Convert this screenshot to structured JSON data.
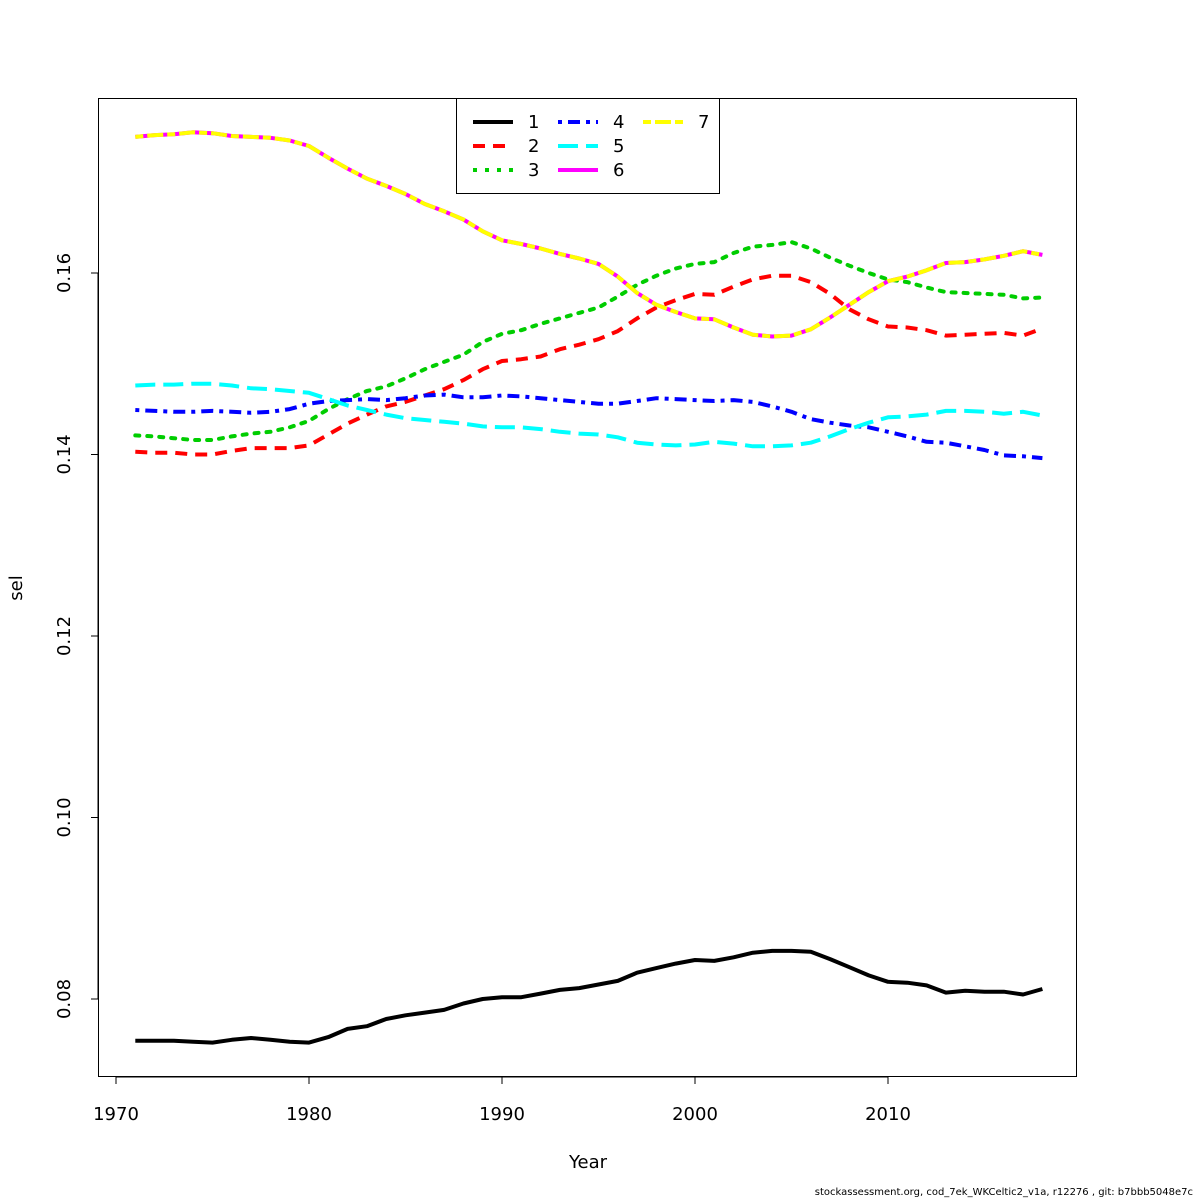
{
  "chart_data": {
    "type": "line",
    "xlabel": "Year",
    "ylabel": "sel",
    "xlim": [
      1970,
      2018
    ],
    "ylim": [
      0.072,
      0.179
    ],
    "x_ticks": [
      "1970",
      "1980",
      "1990",
      "2000",
      "2010"
    ],
    "y_ticks": [
      "0.08",
      "0.10",
      "0.12",
      "0.14",
      "0.16"
    ],
    "legend_position": "top-center",
    "x": [
      1971,
      1972,
      1973,
      1974,
      1975,
      1976,
      1977,
      1978,
      1979,
      1980,
      1981,
      1982,
      1983,
      1984,
      1985,
      1986,
      1987,
      1988,
      1989,
      1990,
      1991,
      1992,
      1993,
      1994,
      1995,
      1996,
      1997,
      1998,
      1999,
      2000,
      2001,
      2002,
      2003,
      2004,
      2005,
      2006,
      2007,
      2008,
      2009,
      2010,
      2011,
      2012,
      2013,
      2014,
      2015,
      2016,
      2017,
      2018
    ],
    "series": [
      {
        "name": "1",
        "color": "#000000",
        "dash": "solid",
        "values": [
          0.0754,
          0.0754,
          0.0754,
          0.0753,
          0.0752,
          0.0755,
          0.0757,
          0.0755,
          0.0753,
          0.0752,
          0.0758,
          0.0767,
          0.077,
          0.0778,
          0.0782,
          0.0785,
          0.0788,
          0.0795,
          0.08,
          0.0802,
          0.0802,
          0.0806,
          0.081,
          0.0812,
          0.0816,
          0.082,
          0.0829,
          0.0834,
          0.0839,
          0.0843,
          0.0842,
          0.0846,
          0.0851,
          0.0853,
          0.0853,
          0.0852,
          0.0844,
          0.0835,
          0.0826,
          0.0819,
          0.0818,
          0.0815,
          0.0807,
          0.0809,
          0.0808,
          0.0808,
          0.0805,
          0.0811
        ]
      },
      {
        "name": "2",
        "color": "#ff0000",
        "dash": "dashed",
        "values": [
          0.1403,
          0.1402,
          0.1402,
          0.14,
          0.14,
          0.1404,
          0.1407,
          0.1407,
          0.1407,
          0.141,
          0.1422,
          0.1434,
          0.1444,
          0.1453,
          0.1458,
          0.1465,
          0.1472,
          0.1482,
          0.1494,
          0.1503,
          0.1505,
          0.1508,
          0.1516,
          0.1521,
          0.1527,
          0.1536,
          0.155,
          0.1562,
          0.157,
          0.1577,
          0.1576,
          0.1585,
          0.1593,
          0.1597,
          0.1597,
          0.159,
          0.1577,
          0.156,
          0.1549,
          0.1541,
          0.154,
          0.1537,
          0.1531,
          0.1532,
          0.1533,
          0.1534,
          0.1531,
          0.1539
        ]
      },
      {
        "name": "3",
        "color": "#00cd00",
        "dash": "dotted",
        "values": [
          0.1421,
          0.142,
          0.1418,
          0.1416,
          0.1416,
          0.142,
          0.1423,
          0.1425,
          0.143,
          0.1437,
          0.145,
          0.1461,
          0.147,
          0.1475,
          0.1484,
          0.1494,
          0.1502,
          0.151,
          0.1524,
          0.1533,
          0.1537,
          0.1544,
          0.155,
          0.1556,
          0.1562,
          0.1574,
          0.1587,
          0.1597,
          0.1605,
          0.161,
          0.1612,
          0.1622,
          0.1629,
          0.1631,
          0.1634,
          0.1627,
          0.1617,
          0.1608,
          0.16,
          0.1593,
          0.159,
          0.1584,
          0.1579,
          0.1578,
          0.1577,
          0.1576,
          0.1572,
          0.1573
        ]
      },
      {
        "name": "4",
        "color": "#0000ff",
        "dash": "dashdot",
        "values": [
          0.1449,
          0.1448,
          0.1447,
          0.1447,
          0.1448,
          0.1447,
          0.1446,
          0.1447,
          0.145,
          0.1456,
          0.1459,
          0.146,
          0.1461,
          0.146,
          0.1462,
          0.1465,
          0.1466,
          0.1463,
          0.1463,
          0.1465,
          0.1464,
          0.1462,
          0.146,
          0.1458,
          0.1456,
          0.1456,
          0.1459,
          0.1462,
          0.1461,
          0.146,
          0.1459,
          0.146,
          0.1458,
          0.1453,
          0.1447,
          0.1439,
          0.1435,
          0.1432,
          0.143,
          0.1425,
          0.142,
          0.1414,
          0.1413,
          0.1409,
          0.1405,
          0.1399,
          0.1398,
          0.1396
        ]
      },
      {
        "name": "5",
        "color": "#00ffff",
        "dash": "longdash",
        "values": [
          0.1476,
          0.1477,
          0.1477,
          0.1478,
          0.1478,
          0.1476,
          0.1473,
          0.1472,
          0.147,
          0.1468,
          0.1461,
          0.1454,
          0.1449,
          0.1444,
          0.144,
          0.1438,
          0.1436,
          0.1434,
          0.1431,
          0.143,
          0.143,
          0.1428,
          0.1425,
          0.1423,
          0.1422,
          0.1419,
          0.1413,
          0.1411,
          0.141,
          0.1411,
          0.1414,
          0.1412,
          0.1409,
          0.1409,
          0.141,
          0.1413,
          0.142,
          0.1428,
          0.1435,
          0.1441,
          0.1442,
          0.1444,
          0.1448,
          0.1448,
          0.1447,
          0.1445,
          0.1447,
          0.1443
        ]
      },
      {
        "name": "6",
        "color": "#ff00ff",
        "dash": "solid",
        "values": [
          0.175,
          0.1752,
          0.1753,
          0.1755,
          0.1754,
          0.1751,
          0.175,
          0.1749,
          0.1746,
          0.174,
          0.1727,
          0.1715,
          0.1704,
          0.1696,
          0.1687,
          0.1676,
          0.1668,
          0.1659,
          0.1646,
          0.1636,
          0.1632,
          0.1627,
          0.1621,
          0.1616,
          0.161,
          0.1596,
          0.1578,
          0.1565,
          0.1557,
          0.155,
          0.1549,
          0.154,
          0.1532,
          0.153,
          0.1531,
          0.1538,
          0.1551,
          0.1565,
          0.1579,
          0.1591,
          0.1596,
          0.1603,
          0.1611,
          0.1612,
          0.1615,
          0.1619,
          0.1624,
          0.162
        ]
      },
      {
        "name": "7",
        "color": "#ffff00",
        "dash": "twodash",
        "values": [
          0.175,
          0.1752,
          0.1753,
          0.1755,
          0.1754,
          0.1751,
          0.175,
          0.1749,
          0.1746,
          0.174,
          0.1727,
          0.1715,
          0.1704,
          0.1696,
          0.1687,
          0.1676,
          0.1668,
          0.1659,
          0.1646,
          0.1636,
          0.1632,
          0.1627,
          0.1621,
          0.1616,
          0.161,
          0.1596,
          0.1578,
          0.1565,
          0.1557,
          0.155,
          0.1549,
          0.154,
          0.1532,
          0.153,
          0.1531,
          0.1538,
          0.1551,
          0.1565,
          0.1579,
          0.1591,
          0.1596,
          0.1603,
          0.1611,
          0.1612,
          0.1615,
          0.1619,
          0.1624,
          0.162
        ]
      }
    ]
  },
  "footer": "stockassessment.org, cod_7ek_WKCeltic2_v1a, r12276 , git: b7bbb5048e7c"
}
